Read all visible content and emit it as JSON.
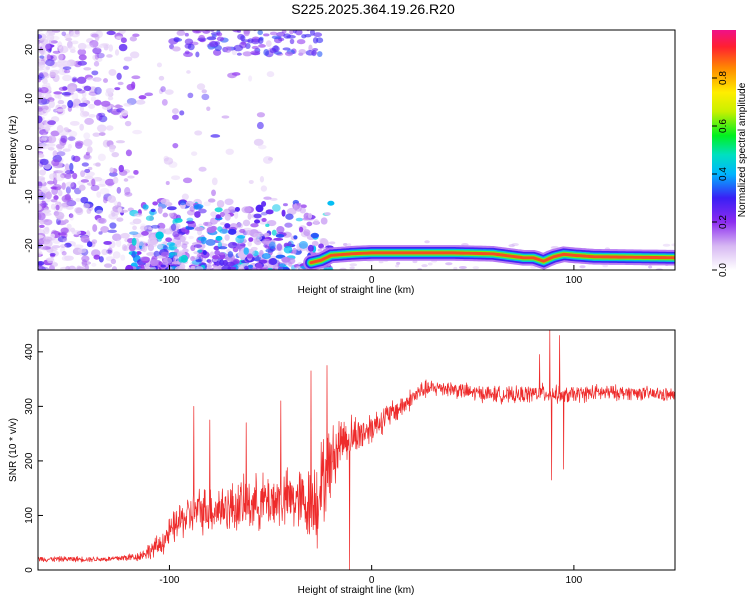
{
  "title": "S225.2025.364.19.26.R20",
  "chart_data": [
    {
      "type": "heatmap",
      "xlabel": "Height of straight line (km)",
      "ylabel": "Frequency (Hz)",
      "xlim": [
        -165,
        150
      ],
      "ylim": [
        -25,
        24
      ],
      "xticks": [
        -100,
        0,
        100
      ],
      "yticks": [
        -20,
        -10,
        0,
        10,
        20
      ],
      "colorbar": {
        "label": "Normalized spectral amplitude",
        "range": [
          0,
          1
        ],
        "ticks": [
          "0.0",
          "0.2",
          "0.4",
          "0.6",
          "0.8"
        ],
        "tick_values": [
          0,
          0.2,
          0.4,
          0.6,
          0.8
        ]
      },
      "features": {
        "ridge": {
          "x": [
            -30,
            -25,
            -20,
            -10,
            0,
            20,
            40,
            60,
            75,
            80,
            85,
            90,
            95,
            100,
            110,
            130,
            150
          ],
          "y": [
            -23.5,
            -23,
            -22,
            -21.7,
            -21.5,
            -21.5,
            -21.5,
            -21.7,
            -22.5,
            -22.5,
            -23.2,
            -22.3,
            -21.8,
            -22,
            -22.3,
            -22.4,
            -22.5
          ],
          "peak_amplitude": 0.9
        },
        "diffuse_region_x_max": -60
      }
    },
    {
      "type": "line",
      "xlabel": "Height of straight line (km)",
      "ylabel": "SNR (10 * v/v)",
      "xlim": [
        -165,
        150
      ],
      "ylim": [
        0,
        440
      ],
      "xticks": [
        -100,
        0,
        100
      ],
      "yticks": [
        0,
        100,
        200,
        300,
        400
      ],
      "color": "#ee2b2b",
      "envelope": {
        "x": [
          -165,
          -130,
          -115,
          -105,
          -95,
          -85,
          -70,
          -55,
          -40,
          -30,
          -25,
          -15,
          -5,
          5,
          15,
          25,
          35,
          50,
          70,
          85,
          95,
          110,
          130,
          150
        ],
        "mean": [
          20,
          20,
          25,
          45,
          90,
          110,
          115,
          125,
          130,
          120,
          155,
          240,
          250,
          275,
          300,
          330,
          335,
          325,
          320,
          325,
          320,
          325,
          325,
          320
        ],
        "noise": [
          6,
          6,
          10,
          25,
          40,
          50,
          55,
          60,
          65,
          80,
          100,
          55,
          40,
          30,
          25,
          20,
          18,
          18,
          18,
          20,
          18,
          18,
          15,
          15
        ]
      },
      "spikes": [
        {
          "x": 88,
          "y": 440
        },
        {
          "x": 89,
          "y": 165
        },
        {
          "x": 93,
          "y": 430
        },
        {
          "x": 95,
          "y": 185
        },
        {
          "x": 83,
          "y": 395
        },
        {
          "x": -22,
          "y": 375
        },
        {
          "x": -27,
          "y": 40
        },
        {
          "x": -30,
          "y": 365
        },
        {
          "x": -11,
          "y": 0
        },
        {
          "x": -88,
          "y": 300
        },
        {
          "x": -80,
          "y": 275
        },
        {
          "x": -62,
          "y": 270
        },
        {
          "x": -45,
          "y": 310
        }
      ]
    }
  ]
}
